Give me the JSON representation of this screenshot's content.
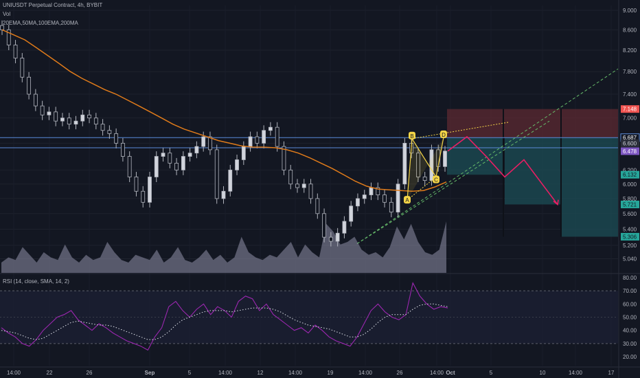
{
  "header": {
    "title": "UNIUSDT Perpetual Contract, 4h, BYBIT",
    "vol_label": "Vol",
    "ma_label": "20EMA,50MA,100EMA,200MA"
  },
  "rsi_panel": {
    "label": "RSI (14, close, SMA, 14, 2)"
  },
  "colors": {
    "background": "#131722",
    "candle": "#b2b5be",
    "ema": "#e07b1a",
    "level_line": "#5b8bd9",
    "pattern": "#f5d547",
    "projection": "#e91e63",
    "stop_zone": "#5c2a32",
    "target_zone": "#1c4a52",
    "trend_dashed": "#66bb6a",
    "rsi_line": "#9c27b0",
    "volume": "#8f8fa8"
  },
  "chart_data": {
    "type": "candlestick",
    "symbol": "UNIUSDT",
    "timeframe": "4h",
    "exchange": "BYBIT",
    "price_axis": {
      "ticks": [
        "9.000",
        "8.600",
        "8.200",
        "7.800",
        "7.400",
        "7.000",
        "6.600",
        "6.200",
        "6.000",
        "5.800",
        "5.600",
        "5.400",
        "5.200",
        "5.040"
      ],
      "tick_values": [
        9.0,
        8.6,
        8.2,
        7.8,
        7.4,
        7.0,
        6.6,
        6.2,
        6.0,
        5.8,
        5.6,
        5.4,
        5.2,
        5.04
      ],
      "scale": "log"
    },
    "time_axis": {
      "ticks": [
        "14:00",
        "22",
        "26",
        "Sep",
        "5",
        "14:00",
        "12",
        "14:00",
        "19",
        "14:00",
        "26",
        "14:00",
        "Oct",
        "5",
        "10",
        "14:00",
        "17"
      ]
    },
    "price_tags": [
      {
        "value": "7.148",
        "kind": "stop"
      },
      {
        "value": "6.687",
        "kind": "level"
      },
      {
        "value": "6.600",
        "kind": "axis"
      },
      {
        "value": "6.478",
        "kind": "current"
      },
      {
        "value": "6.132",
        "kind": "target"
      },
      {
        "value": "5.721",
        "kind": "target"
      },
      {
        "value": "5.306",
        "kind": "target"
      }
    ],
    "horizontal_levels": [
      6.687,
      6.53
    ],
    "close_series": [
      8.6,
      8.3,
      8.05,
      7.7,
      7.4,
      7.2,
      7.05,
      7.1,
      6.95,
      7.0,
      6.9,
      6.95,
      7.05,
      7.0,
      6.9,
      6.8,
      6.75,
      6.6,
      6.4,
      6.1,
      5.9,
      5.75,
      6.1,
      6.4,
      6.45,
      6.3,
      6.2,
      6.4,
      6.45,
      6.55,
      6.7,
      6.5,
      5.8,
      5.9,
      6.2,
      6.35,
      6.55,
      6.7,
      6.6,
      6.8,
      6.85,
      6.55,
      6.2,
      6.0,
      5.95,
      6.0,
      5.8,
      5.6,
      5.3,
      5.25,
      5.35,
      5.5,
      5.7,
      5.8,
      5.85,
      5.95,
      5.85,
      5.75,
      5.62,
      6.0,
      6.6,
      6.45,
      6.1,
      6.05,
      6.5,
      6.25,
      6.48
    ],
    "ema_series": [
      8.6,
      8.5,
      8.4,
      8.25,
      8.1,
      7.95,
      7.8,
      7.68,
      7.58,
      7.48,
      7.4,
      7.3,
      7.2,
      7.1,
      7.0,
      6.9,
      6.82,
      6.76,
      6.7,
      6.64,
      6.6,
      6.56,
      6.54,
      6.54,
      6.53,
      6.5,
      6.45,
      6.38,
      6.3,
      6.22,
      6.13,
      6.04,
      5.97,
      5.93,
      5.92,
      5.91,
      5.9,
      5.91,
      5.96,
      6.03
    ],
    "pattern_points": [
      {
        "label": "A",
        "price": 5.78
      },
      {
        "label": "B",
        "price": 6.67
      },
      {
        "label": "C",
        "price": 6.1
      },
      {
        "label": "D",
        "price": 6.69
      }
    ],
    "projection_path": [
      6.48,
      6.7,
      6.4,
      6.1,
      6.35,
      5.72
    ],
    "zones": {
      "stop": [
        6.687,
        7.148
      ],
      "targets": [
        6.132,
        5.721,
        5.306
      ]
    },
    "volume_series": [
      0.2,
      0.3,
      0.25,
      0.5,
      0.35,
      0.2,
      0.4,
      0.3,
      0.25,
      0.55,
      0.3,
      0.2,
      0.35,
      0.25,
      0.3,
      0.6,
      0.4,
      0.25,
      0.2,
      0.35,
      0.3,
      0.25,
      0.45,
      0.2,
      0.3,
      0.5,
      0.25,
      0.2,
      0.3,
      0.45,
      0.25,
      0.35,
      0.2,
      0.3,
      0.7,
      0.4,
      0.3,
      0.25,
      0.35,
      0.3,
      0.45,
      0.6,
      0.3,
      0.55,
      0.4,
      0.3,
      0.95,
      0.8,
      0.55,
      0.6,
      0.7,
      0.45,
      0.35,
      0.4,
      0.3,
      0.5,
      0.9,
      0.65,
      0.95,
      0.6,
      0.4,
      0.35,
      0.45,
      1.0
    ],
    "rsi": {
      "ticks": [
        "80.00",
        "70.00",
        "60.00",
        "50.00",
        "40.00",
        "30.00",
        "20.00"
      ],
      "tick_values": [
        80,
        70,
        60,
        50,
        40,
        30,
        20
      ],
      "bands": [
        70,
        30
      ],
      "rsi_series": [
        42,
        38,
        35,
        30,
        28,
        33,
        40,
        45,
        50,
        52,
        55,
        48,
        44,
        40,
        45,
        42,
        38,
        35,
        32,
        30,
        28,
        25,
        35,
        42,
        58,
        62,
        55,
        50,
        56,
        60,
        52,
        58,
        55,
        50,
        62,
        66,
        64,
        55,
        60,
        52,
        48,
        44,
        40,
        42,
        38,
        44,
        40,
        35,
        32,
        30,
        28,
        35,
        45,
        55,
        60,
        54,
        50,
        48,
        52,
        76,
        66,
        60,
        56,
        58,
        57
      ],
      "sma_series": [
        40,
        39,
        38,
        36,
        34,
        33,
        34,
        37,
        40,
        43,
        46,
        47,
        46,
        45,
        44,
        44,
        43,
        41,
        39,
        37,
        35,
        33,
        33,
        35,
        39,
        44,
        48,
        50,
        52,
        54,
        55,
        55,
        55,
        54,
        55,
        56,
        57,
        57,
        57,
        56,
        54,
        51,
        48,
        46,
        44,
        43,
        42,
        41,
        39,
        37,
        35,
        35,
        37,
        41,
        46,
        50,
        52,
        52,
        52,
        56,
        59,
        60,
        60,
        59,
        58
      ]
    }
  }
}
